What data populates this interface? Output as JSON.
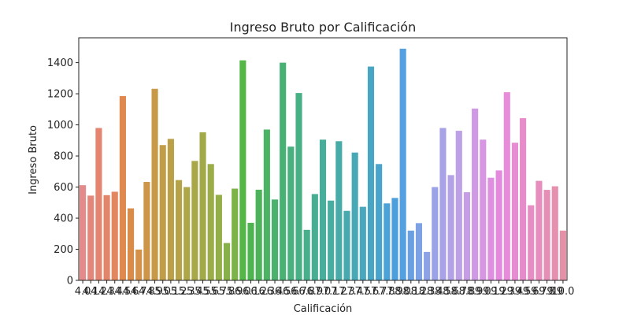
{
  "chart_data": {
    "type": "bar",
    "title": "Ingreso Bruto por Calificación",
    "xlabel": "Calificación",
    "ylabel": "Ingreso Bruto",
    "ylim": [
      0,
      1560
    ],
    "yticks": [
      0,
      200,
      400,
      600,
      800,
      1000,
      1200,
      1400
    ],
    "categories": [
      "4.0",
      "4.1",
      "4.2",
      "4.3",
      "4.4",
      "4.5",
      "4.6",
      "4.7",
      "4.8",
      "4.9",
      "5.0",
      "5.1",
      "5.2",
      "5.3",
      "5.4",
      "5.5",
      "5.6",
      "5.7",
      "5.8",
      "5.9",
      "6.0",
      "6.1",
      "6.2",
      "6.3",
      "6.4",
      "6.5",
      "6.6",
      "6.7",
      "6.8",
      "6.9",
      "7.0",
      "7.1",
      "7.2",
      "7.3",
      "7.4",
      "7.5",
      "7.6",
      "7.7",
      "7.8",
      "7.9",
      "8.0",
      "8.1",
      "8.2",
      "8.3",
      "8.4",
      "8.5",
      "8.6",
      "8.7",
      "8.8",
      "8.9",
      "9.0",
      "9.1",
      "9.2",
      "9.3",
      "9.4",
      "9.5",
      "9.6",
      "9.7",
      "9.8",
      "9.9",
      "10.0"
    ],
    "values": [
      612,
      545,
      980,
      548,
      570,
      1185,
      463,
      198,
      633,
      1232,
      870,
      910,
      645,
      600,
      768,
      952,
      748,
      550,
      240,
      590,
      1415,
      370,
      583,
      970,
      520,
      1400,
      860,
      1205,
      325,
      555,
      905,
      513,
      895,
      447,
      822,
      473,
      1375,
      748,
      495,
      530,
      1490,
      320,
      368,
      183,
      600,
      980,
      677,
      962,
      567,
      1105,
      905,
      660,
      707,
      1210,
      885,
      1043,
      483,
      640,
      582,
      605,
      320
    ],
    "colors": [
      "#e48a8a",
      "#e5867a",
      "#e38571",
      "#e3856a",
      "#e38761",
      "#e0894e",
      "#d98c4a",
      "#d39149",
      "#cc9548",
      "#c89a47",
      "#c29d47",
      "#bca047",
      "#b6a347",
      "#aea747",
      "#a8a848",
      "#a2a948",
      "#9aad48",
      "#94ae48",
      "#88b048",
      "#7db248",
      "#55b648",
      "#4eb44f",
      "#4cb35a",
      "#4ab364",
      "#49b26d",
      "#48b275",
      "#48b17d",
      "#48b085",
      "#48af8c",
      "#48ae93",
      "#48ad9a",
      "#48aca0",
      "#48aba7",
      "#48aaae",
      "#48a9b6",
      "#48a8bd",
      "#48a6c5",
      "#48a4cd",
      "#4aa2d6",
      "#4c9fdd",
      "#55a0e0",
      "#6aa0e2",
      "#7ca1e4",
      "#8da2e5",
      "#9ba3e6",
      "#a8a3e6",
      "#b3a2e6",
      "#bda0e6",
      "#c69de6",
      "#cf99e5",
      "#d895e3",
      "#df8fe0",
      "#e38ade",
      "#e68cd9",
      "#e68cd2",
      "#e68ccb",
      "#e68dc4",
      "#e68ebd",
      "#e68fb6",
      "#e68faf",
      "#e690a8"
    ]
  }
}
